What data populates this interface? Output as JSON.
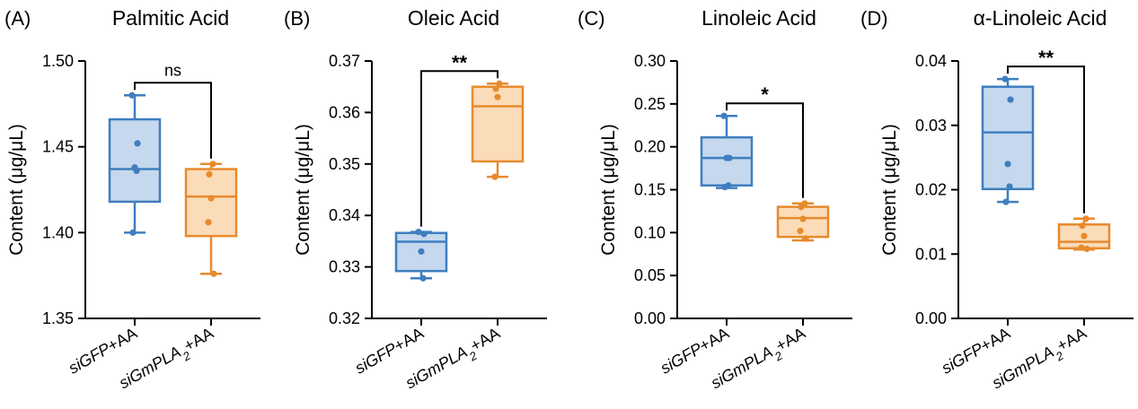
{
  "colors": {
    "blue": "#3f7ebf",
    "blue_fill": "#c5d8ee",
    "orange": "#e88a2d",
    "orange_fill": "#fbdcb8",
    "axis": "#000000"
  },
  "categories": [
    {
      "text": "siGFP",
      "sub": "",
      "tail": "+AA"
    },
    {
      "text": "siGmPLA",
      "sub": "2",
      "tail": "+AA"
    }
  ],
  "chart_data": [
    {
      "type": "box",
      "panel_label": "(A)",
      "title": "Palmitic Acid",
      "ylabel": "Content (μg/μL)",
      "ylim": [
        1.35,
        1.5
      ],
      "yticks": [
        "1.35",
        "1.40",
        "1.45",
        "1.50"
      ],
      "significance": "ns",
      "series": [
        {
          "whisker_low": 1.4,
          "q1": 1.418,
          "median": 1.437,
          "q3": 1.466,
          "whisker_high": 1.48,
          "points": [
            1.48,
            1.452,
            1.438,
            1.436,
            1.4
          ]
        },
        {
          "whisker_low": 1.376,
          "q1": 1.398,
          "median": 1.421,
          "q3": 1.437,
          "whisker_high": 1.44,
          "points": [
            1.44,
            1.434,
            1.42,
            1.406,
            1.376
          ]
        }
      ]
    },
    {
      "type": "box",
      "panel_label": "(B)",
      "title": "Oleic Acid",
      "ylabel": "Content (μg/μL)",
      "ylim": [
        0.32,
        0.37
      ],
      "yticks": [
        "0.32",
        "0.33",
        "0.34",
        "0.35",
        "0.36",
        "0.37"
      ],
      "significance": "**",
      "series": [
        {
          "whisker_low": 0.3278,
          "q1": 0.3292,
          "median": 0.3349,
          "q3": 0.3366,
          "whisker_high": 0.3368,
          "points": [
            0.3368,
            0.3364,
            0.333,
            0.3278
          ]
        },
        {
          "whisker_low": 0.3475,
          "q1": 0.3505,
          "median": 0.3612,
          "q3": 0.365,
          "whisker_high": 0.3656,
          "points": [
            0.3656,
            0.3646,
            0.363,
            0.3475
          ]
        }
      ]
    },
    {
      "type": "box",
      "panel_label": "(C)",
      "title": "Linoleic Acid",
      "ylabel": "Content (μg/μL)",
      "ylim": [
        0.0,
        0.3
      ],
      "yticks": [
        "0.00",
        "0.05",
        "0.10",
        "0.15",
        "0.20",
        "0.25",
        "0.30"
      ],
      "significance": "*",
      "series": [
        {
          "whisker_low": 0.152,
          "q1": 0.155,
          "median": 0.187,
          "q3": 0.211,
          "whisker_high": 0.236,
          "points": [
            0.236,
            0.187,
            0.187,
            0.155,
            0.153
          ]
        },
        {
          "whisker_low": 0.091,
          "q1": 0.095,
          "median": 0.117,
          "q3": 0.13,
          "whisker_high": 0.134,
          "points": [
            0.134,
            0.13,
            0.116,
            0.102,
            0.093
          ]
        }
      ]
    },
    {
      "type": "box",
      "panel_label": "(D)",
      "title": "α-Linoleic Acid",
      "ylabel": "Content (μg/μL)",
      "ylim": [
        0.0,
        0.04
      ],
      "yticks": [
        "0.00",
        "0.01",
        "0.02",
        "0.03",
        "0.04"
      ],
      "significance": "**",
      "series": [
        {
          "whisker_low": 0.0181,
          "q1": 0.0201,
          "median": 0.0289,
          "q3": 0.036,
          "whisker_high": 0.0372,
          "points": [
            0.0372,
            0.034,
            0.024,
            0.0205,
            0.0181
          ]
        },
        {
          "whisker_low": 0.0107,
          "q1": 0.0109,
          "median": 0.0119,
          "q3": 0.0146,
          "whisker_high": 0.0155,
          "points": [
            0.0155,
            0.0144,
            0.0128,
            0.011,
            0.0108
          ]
        }
      ]
    }
  ]
}
